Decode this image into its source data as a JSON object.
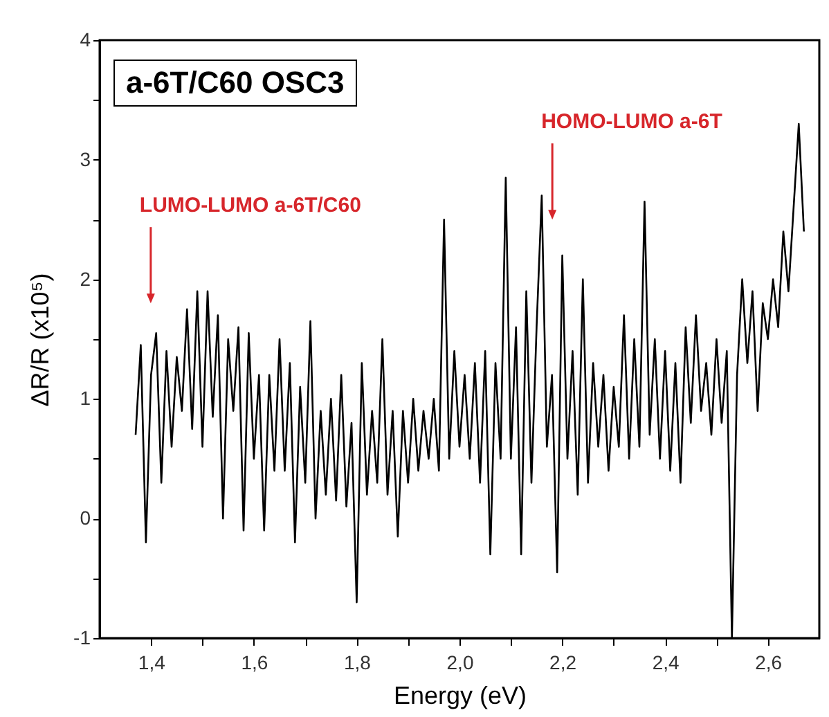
{
  "chart_data": {
    "type": "line",
    "xlabel": "Energy (eV)",
    "ylabel": "ΔR/R (x10⁵)",
    "annotations": [
      "a-6T/C60 OSC3",
      "LUMO-LUMO a-6T/C60",
      "HOMO-LUMO a-6T"
    ],
    "xlim": [
      1.3,
      2.7
    ],
    "ylim": [
      -1,
      4
    ],
    "xticks": [
      {
        "value": 1.4,
        "label": "1,4"
      },
      {
        "value": 1.5,
        "label": null
      },
      {
        "value": 1.6,
        "label": "1,6"
      },
      {
        "value": 1.7,
        "label": null
      },
      {
        "value": 1.8,
        "label": "1,8"
      },
      {
        "value": 1.9,
        "label": null
      },
      {
        "value": 2.0,
        "label": "2,0"
      },
      {
        "value": 2.1,
        "label": null
      },
      {
        "value": 2.2,
        "label": "2,2"
      },
      {
        "value": 2.3,
        "label": null
      },
      {
        "value": 2.4,
        "label": "2,4"
      },
      {
        "value": 2.5,
        "label": null
      },
      {
        "value": 2.6,
        "label": "2,6"
      }
    ],
    "yticks": [
      -1,
      {
        "value": -0.5,
        "label": null
      },
      0,
      {
        "value": 0.5,
        "label": null
      },
      1,
      {
        "value": 1.5,
        "label": null
      },
      2,
      {
        "value": 2.5,
        "label": null
      },
      3,
      {
        "value": 3.5,
        "label": null
      },
      4
    ],
    "grid": false,
    "x": [
      1.37,
      1.38,
      1.39,
      1.4,
      1.41,
      1.42,
      1.43,
      1.44,
      1.45,
      1.46,
      1.47,
      1.48,
      1.49,
      1.5,
      1.51,
      1.52,
      1.53,
      1.54,
      1.55,
      1.56,
      1.57,
      1.58,
      1.59,
      1.6,
      1.61,
      1.62,
      1.63,
      1.64,
      1.65,
      1.66,
      1.67,
      1.68,
      1.69,
      1.7,
      1.71,
      1.72,
      1.73,
      1.74,
      1.75,
      1.76,
      1.77,
      1.78,
      1.79,
      1.8,
      1.81,
      1.82,
      1.83,
      1.84,
      1.85,
      1.86,
      1.87,
      1.88,
      1.89,
      1.9,
      1.91,
      1.92,
      1.93,
      1.94,
      1.95,
      1.96,
      1.97,
      1.98,
      1.99,
      2.0,
      2.01,
      2.02,
      2.03,
      2.04,
      2.05,
      2.06,
      2.07,
      2.08,
      2.09,
      2.1,
      2.11,
      2.12,
      2.13,
      2.14,
      2.15,
      2.16,
      2.17,
      2.18,
      2.19,
      2.2,
      2.21,
      2.22,
      2.23,
      2.24,
      2.25,
      2.26,
      2.27,
      2.28,
      2.29,
      2.3,
      2.31,
      2.32,
      2.33,
      2.34,
      2.35,
      2.36,
      2.37,
      2.38,
      2.39,
      2.4,
      2.41,
      2.42,
      2.43,
      2.44,
      2.45,
      2.46,
      2.47,
      2.48,
      2.49,
      2.5,
      2.51,
      2.52,
      2.53,
      2.54,
      2.55,
      2.56,
      2.57,
      2.58,
      2.59,
      2.6,
      2.61,
      2.62,
      2.63,
      2.64,
      2.65,
      2.66,
      2.67
    ],
    "series": [
      {
        "color": "#000000",
        "values": [
          0.7,
          1.45,
          -0.2,
          1.2,
          1.55,
          0.3,
          1.4,
          0.6,
          1.35,
          0.9,
          1.75,
          0.75,
          1.9,
          0.6,
          1.9,
          0.85,
          1.7,
          0.0,
          1.5,
          0.9,
          1.6,
          -0.1,
          1.55,
          0.5,
          1.2,
          -0.1,
          1.2,
          0.4,
          1.5,
          0.4,
          1.3,
          -0.2,
          1.1,
          0.3,
          1.65,
          0.0,
          0.9,
          0.2,
          1.0,
          0.15,
          1.2,
          0.1,
          0.8,
          -0.7,
          1.3,
          0.2,
          0.9,
          0.3,
          1.5,
          0.2,
          0.9,
          -0.15,
          0.9,
          0.3,
          1.0,
          0.4,
          0.9,
          0.5,
          1.0,
          0.4,
          2.5,
          0.5,
          1.4,
          0.6,
          1.2,
          0.5,
          1.3,
          0.3,
          1.4,
          -0.3,
          1.3,
          0.5,
          2.85,
          0.5,
          1.6,
          -0.3,
          1.9,
          0.3,
          1.6,
          2.7,
          0.6,
          1.2,
          -0.45,
          2.2,
          0.5,
          1.4,
          0.2,
          2.0,
          0.3,
          1.3,
          0.6,
          1.2,
          0.4,
          1.1,
          0.6,
          1.7,
          0.5,
          1.5,
          0.6,
          2.65,
          0.7,
          1.5,
          0.5,
          1.4,
          0.4,
          1.3,
          0.3,
          1.6,
          0.8,
          1.7,
          0.9,
          1.3,
          0.7,
          1.5,
          0.8,
          1.4,
          -1,
          1.2,
          2.0,
          1.3,
          1.9,
          0.9,
          1.8,
          1.5,
          2.0,
          1.6,
          2.4,
          1.9,
          2.6,
          3.3,
          2.4
        ]
      }
    ]
  }
}
